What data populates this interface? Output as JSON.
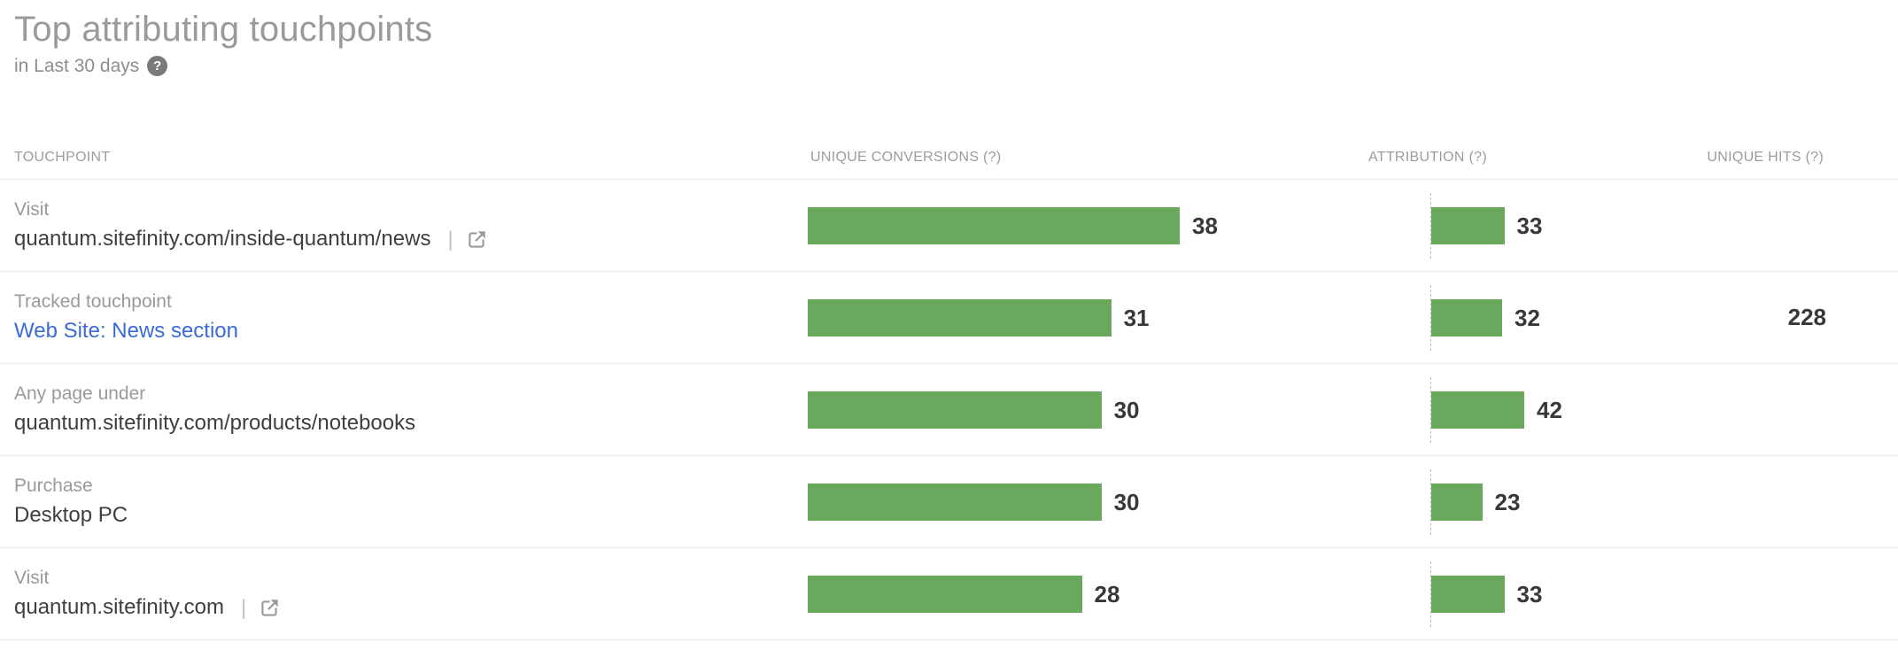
{
  "header": {
    "title": "Top attributing touchpoints",
    "subtitle": "in Last 30 days",
    "help_glyph": "?"
  },
  "table": {
    "columns": [
      "TOUCHPOINT",
      "UNIQUE CONVERSIONS (?)",
      "ATTRIBUTION (?)",
      "UNIQUE HITS (?)"
    ],
    "divider_glyph": "|",
    "rows": [
      {
        "type": "Visit",
        "name": "quantum.sitefinity.com/inside-quantum/news",
        "conversions": 38,
        "attribution": 33,
        "unique_hits": ""
      },
      {
        "type": "Tracked touchpoint",
        "name": "Web Site: News section",
        "conversions": 31,
        "attribution": 32,
        "unique_hits": "228"
      },
      {
        "type": "Any page under",
        "name": "quantum.sitefinity.com/products/notebooks",
        "conversions": 30,
        "attribution": 42,
        "unique_hits": ""
      },
      {
        "type": "Purchase",
        "name": "Desktop PC",
        "conversions": 30,
        "attribution": 23,
        "unique_hits": ""
      },
      {
        "type": "Visit",
        "name": "quantum.sitefinity.com",
        "conversions": 28,
        "attribution": 33,
        "unique_hits": ""
      }
    ]
  },
  "chart_data": {
    "type": "bar",
    "orientation": "horizontal",
    "title": "Top attributing touchpoints",
    "subtitle": "in Last 30 days",
    "categories": [
      "Visit: quantum.sitefinity.com/inside-quantum/news",
      "Tracked touchpoint: Web Site: News section",
      "Any page under: quantum.sitefinity.com/products/notebooks",
      "Purchase: Desktop PC",
      "Visit: quantum.sitefinity.com"
    ],
    "series": [
      {
        "name": "Unique conversions",
        "values": [
          38,
          31,
          30,
          30,
          28
        ]
      },
      {
        "name": "Attribution",
        "values": [
          33,
          32,
          42,
          23,
          33
        ]
      },
      {
        "name": "Unique hits",
        "values": [
          null,
          228,
          null,
          null,
          null
        ]
      }
    ],
    "scale_max": {
      "conversions": 38,
      "attribution": 42
    },
    "grid": false,
    "legend": false
  },
  "colors": {
    "bar_green": "#6AA85E",
    "link_blue": "#3B6BD7",
    "title_gray": "#9A9A9A",
    "value_dark": "#383838"
  }
}
